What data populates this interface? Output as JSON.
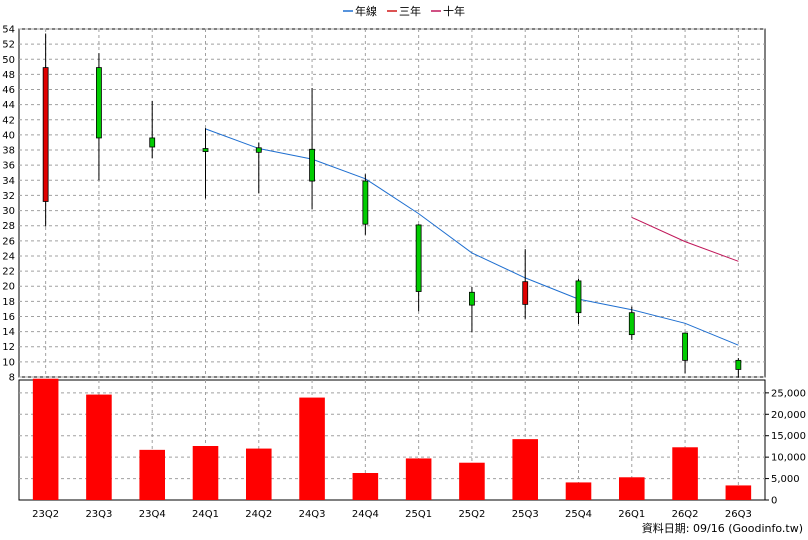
{
  "chart_data": {
    "type": "candlestick+bar",
    "legend": [
      {
        "name": "年線",
        "color": "#1f6fd0"
      },
      {
        "name": "三年",
        "color": "#d01818"
      },
      {
        "name": "十年",
        "color": "#c0185a"
      }
    ],
    "categories": [
      "23Q2",
      "23Q3",
      "23Q4",
      "24Q1",
      "24Q2",
      "24Q3",
      "24Q4",
      "25Q1",
      "25Q2",
      "25Q3",
      "25Q4",
      "26Q1",
      "26Q2",
      "26Q3"
    ],
    "price_axis": {
      "min": 8,
      "max": 54,
      "ticks": [
        8,
        10,
        12,
        14,
        16,
        18,
        20,
        22,
        24,
        26,
        28,
        30,
        32,
        34,
        36,
        38,
        40,
        42,
        44,
        46,
        48,
        50,
        52,
        54
      ]
    },
    "candles": [
      {
        "open": 31.2,
        "high": 53.4,
        "low": 27.9,
        "close": 48.9,
        "color": "red"
      },
      {
        "open": 48.9,
        "high": 50.8,
        "low": 34.0,
        "close": 39.6,
        "color": "green"
      },
      {
        "open": 39.6,
        "high": 44.5,
        "low": 36.9,
        "close": 38.4,
        "color": "green"
      },
      {
        "open": 38.2,
        "high": 40.9,
        "low": 31.6,
        "close": 37.8,
        "color": "green"
      },
      {
        "open": 38.3,
        "high": 39.0,
        "low": 32.3,
        "close": 37.7,
        "color": "green"
      },
      {
        "open": 38.1,
        "high": 46.2,
        "low": 30.2,
        "close": 33.9,
        "color": "green"
      },
      {
        "open": 33.9,
        "high": 34.8,
        "low": 26.8,
        "close": 28.2,
        "color": "green"
      },
      {
        "open": 28.1,
        "high": 28.2,
        "low": 16.7,
        "close": 19.3,
        "color": "green"
      },
      {
        "open": 19.2,
        "high": 19.9,
        "low": 13.9,
        "close": 17.5,
        "color": "green"
      },
      {
        "open": 17.6,
        "high": 24.9,
        "low": 15.7,
        "close": 20.6,
        "color": "red"
      },
      {
        "open": 20.7,
        "high": 21.0,
        "low": 15.0,
        "close": 16.5,
        "color": "green"
      },
      {
        "open": 16.5,
        "high": 17.3,
        "low": 12.9,
        "close": 13.6,
        "color": "green"
      },
      {
        "open": 13.8,
        "high": 13.9,
        "low": 8.5,
        "close": 10.2,
        "color": "green"
      },
      {
        "open": 10.2,
        "high": 10.5,
        "low": 7.9,
        "close": 9.0,
        "color": "green"
      }
    ],
    "ma_lines": [
      {
        "name": "年線",
        "start_index": 3,
        "values": [
          40.8,
          38.2,
          36.8,
          34.2,
          29.6,
          24.4,
          21.1,
          18.3,
          16.9,
          15.1,
          12.2
        ]
      },
      {
        "name": "十年",
        "start_index": 11,
        "values": [
          29.1,
          25.9,
          23.3
        ]
      }
    ],
    "volume_axis": {
      "min": 0,
      "max": 28000,
      "ticks": [
        0,
        5000,
        10000,
        15000,
        20000,
        25000
      ],
      "tick_labels": [
        "0",
        "5,000",
        "10,000",
        "15,000",
        "20,000",
        "25,000"
      ]
    },
    "volumes": [
      28300,
      24600,
      11700,
      12600,
      12000,
      23900,
      6300,
      9700,
      8700,
      14200,
      4100,
      5300,
      12300,
      3400
    ],
    "grid": true
  },
  "footer": {
    "note": "資料日期: 09/16  (Goodinfo.tw)"
  }
}
